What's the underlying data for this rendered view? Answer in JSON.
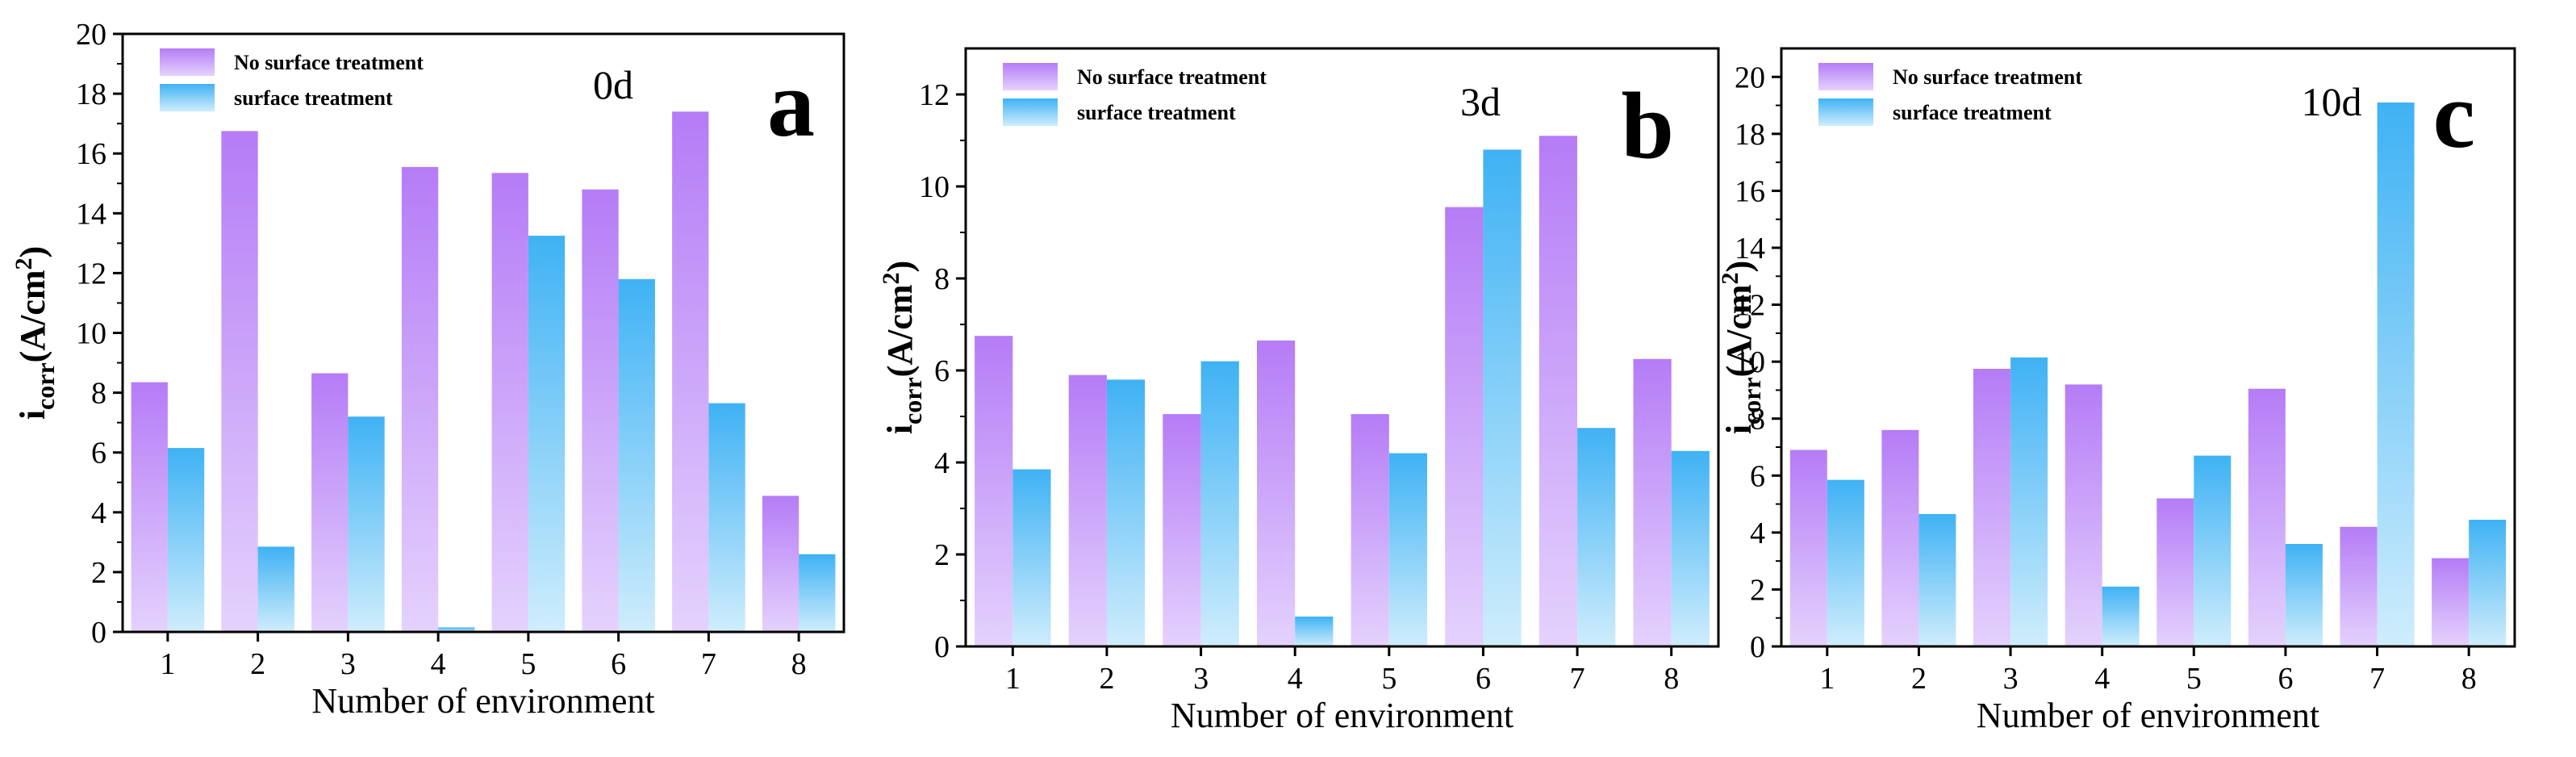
{
  "colors": {
    "no_treatment_top": "#b57cf6",
    "no_treatment_bottom": "#e4d2fd",
    "treatment_top": "#3fb2f4",
    "treatment_bottom": "#cfedfc"
  },
  "chart_data": [
    {
      "type": "bar",
      "panel": "a",
      "time_label": "0d",
      "categories": [
        "1",
        "2",
        "3",
        "4",
        "5",
        "6",
        "7",
        "8"
      ],
      "series": [
        {
          "name": "No surface treatment",
          "values": [
            8.35,
            16.75,
            8.65,
            15.55,
            15.35,
            14.8,
            17.4,
            4.55
          ]
        },
        {
          "name": "surface treatment",
          "values": [
            6.15,
            2.85,
            7.2,
            0.15,
            13.25,
            11.8,
            7.65,
            2.6
          ]
        }
      ],
      "xlabel": "Number of environment",
      "ylabel": {
        "main": "i",
        "sub": "corr",
        "unit_pre": "(A/cm",
        "sup": "2",
        "unit_post": ")"
      },
      "ylim": [
        0,
        20
      ],
      "yticks": [
        0,
        2,
        4,
        6,
        8,
        10,
        12,
        14,
        16,
        18,
        20
      ],
      "legend": [
        "No surface treatment",
        "surface treatment"
      ],
      "legend_position": "top-left",
      "grid": false
    },
    {
      "type": "bar",
      "panel": "b",
      "time_label": "3d",
      "categories": [
        "1",
        "2",
        "3",
        "4",
        "5",
        "6",
        "7",
        "8"
      ],
      "series": [
        {
          "name": "No surface treatment",
          "values": [
            6.75,
            5.9,
            5.05,
            6.65,
            5.05,
            9.55,
            11.1,
            6.25
          ]
        },
        {
          "name": "surface treatment",
          "values": [
            3.85,
            5.8,
            6.2,
            0.65,
            4.2,
            10.8,
            4.75,
            4.25
          ]
        }
      ],
      "xlabel": "Number of environment",
      "ylabel": {
        "main": "i",
        "sub": "corr",
        "unit_pre": "(A/cm",
        "sup": "2",
        "unit_post": ")"
      },
      "ylim": [
        0,
        13
      ],
      "yticks": [
        0,
        2,
        4,
        6,
        8,
        10,
        12
      ],
      "legend": [
        "No surface treatment",
        "surface treatment"
      ],
      "legend_position": "top-left",
      "grid": false
    },
    {
      "type": "bar",
      "panel": "c",
      "time_label": "10d",
      "categories": [
        "1",
        "2",
        "3",
        "4",
        "5",
        "6",
        "7",
        "8"
      ],
      "series": [
        {
          "name": "No surface treatment",
          "values": [
            6.9,
            7.6,
            9.75,
            9.2,
            5.2,
            9.05,
            4.2,
            3.1
          ]
        },
        {
          "name": "surface treatment",
          "values": [
            5.85,
            4.65,
            10.15,
            2.1,
            6.7,
            3.6,
            19.1,
            4.45
          ]
        }
      ],
      "xlabel": "Number of environment",
      "ylabel": {
        "main": "i",
        "sub": "corr",
        "unit_pre": "(A/cm",
        "sup": "2",
        "unit_post": ")"
      },
      "ylim": [
        0,
        21
      ],
      "yticks": [
        0,
        2,
        4,
        6,
        8,
        10,
        12,
        14,
        16,
        18,
        20
      ],
      "legend": [
        "No surface treatment",
        "surface treatment"
      ],
      "legend_position": "top-left",
      "grid": false
    }
  ]
}
